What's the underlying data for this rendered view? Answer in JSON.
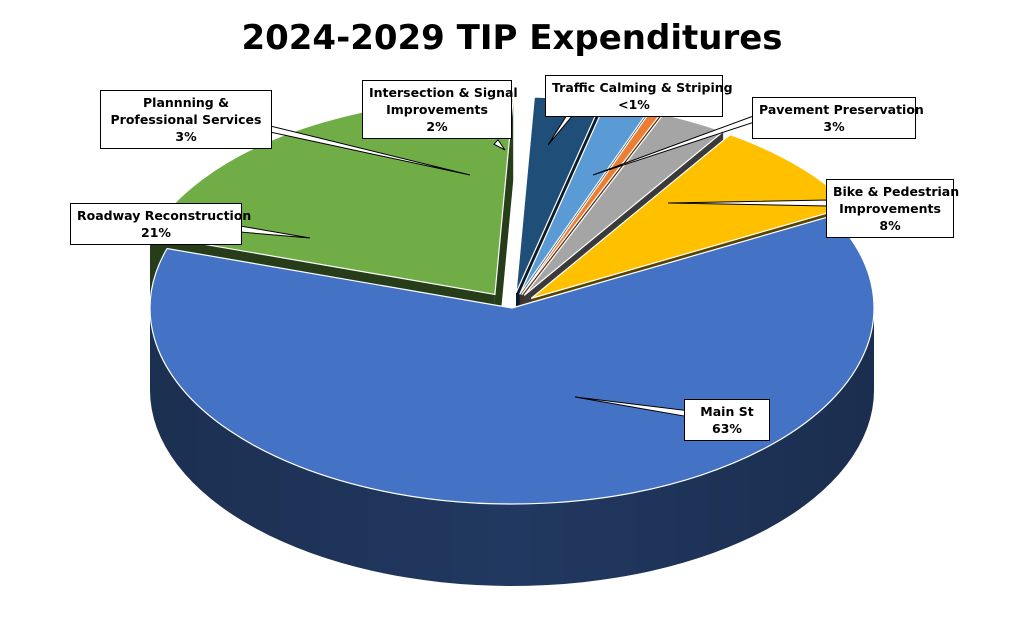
{
  "chart_data": {
    "type": "pie",
    "style": "3d-exploded",
    "title": "2024-2029 TIP Expenditures",
    "slices": [
      {
        "name_lines": [
          "Main St"
        ],
        "pct_label": "63%",
        "value": 63,
        "color": "#4472c4"
      },
      {
        "name_lines": [
          "Roadway Reconstruction"
        ],
        "pct_label": "21%",
        "value": 21,
        "color": "#70ad47"
      },
      {
        "name_lines": [
          "Plannning &",
          "Professional Services"
        ],
        "pct_label": "3%",
        "value": 3,
        "color": "#1f4e79"
      },
      {
        "name_lines": [
          "Intersection & Signal",
          "Improvements"
        ],
        "pct_label": "2%",
        "value": 2,
        "color": "#5b9bd5"
      },
      {
        "name_lines": [
          "Traffic Calming & Striping"
        ],
        "pct_label": "<1%",
        "value": 0.5,
        "color": "#ed7d31"
      },
      {
        "name_lines": [
          "Pavement Preservation"
        ],
        "pct_label": "3%",
        "value": 3,
        "color": "#a5a5a5"
      },
      {
        "name_lines": [
          "Bike & Pedestrian",
          "Improvements"
        ],
        "pct_label": "8%",
        "value": 8,
        "color": "#ffc000"
      }
    ]
  }
}
